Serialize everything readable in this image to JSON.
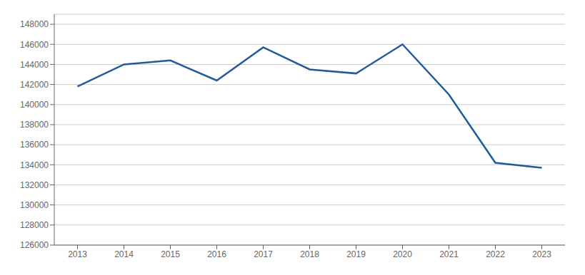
{
  "chart_data": {
    "type": "line",
    "x": [
      2013,
      2014,
      2015,
      2016,
      2017,
      2018,
      2019,
      2020,
      2021,
      2022,
      2023
    ],
    "values": [
      141800,
      144000,
      144400,
      142400,
      145700,
      143500,
      143100,
      146000,
      141000,
      134200,
      133700
    ],
    "color": "#1f5c99",
    "xlim": [
      2012.5,
      2023.5
    ],
    "xticks": [
      2013,
      2014,
      2015,
      2016,
      2017,
      2018,
      2019,
      2020,
      2021,
      2022,
      2023
    ],
    "ylim": [
      126000,
      149000
    ],
    "yticks": [
      126000,
      128000,
      130000,
      132000,
      134000,
      136000,
      138000,
      140000,
      142000,
      144000,
      146000,
      148000
    ],
    "grid": true
  }
}
